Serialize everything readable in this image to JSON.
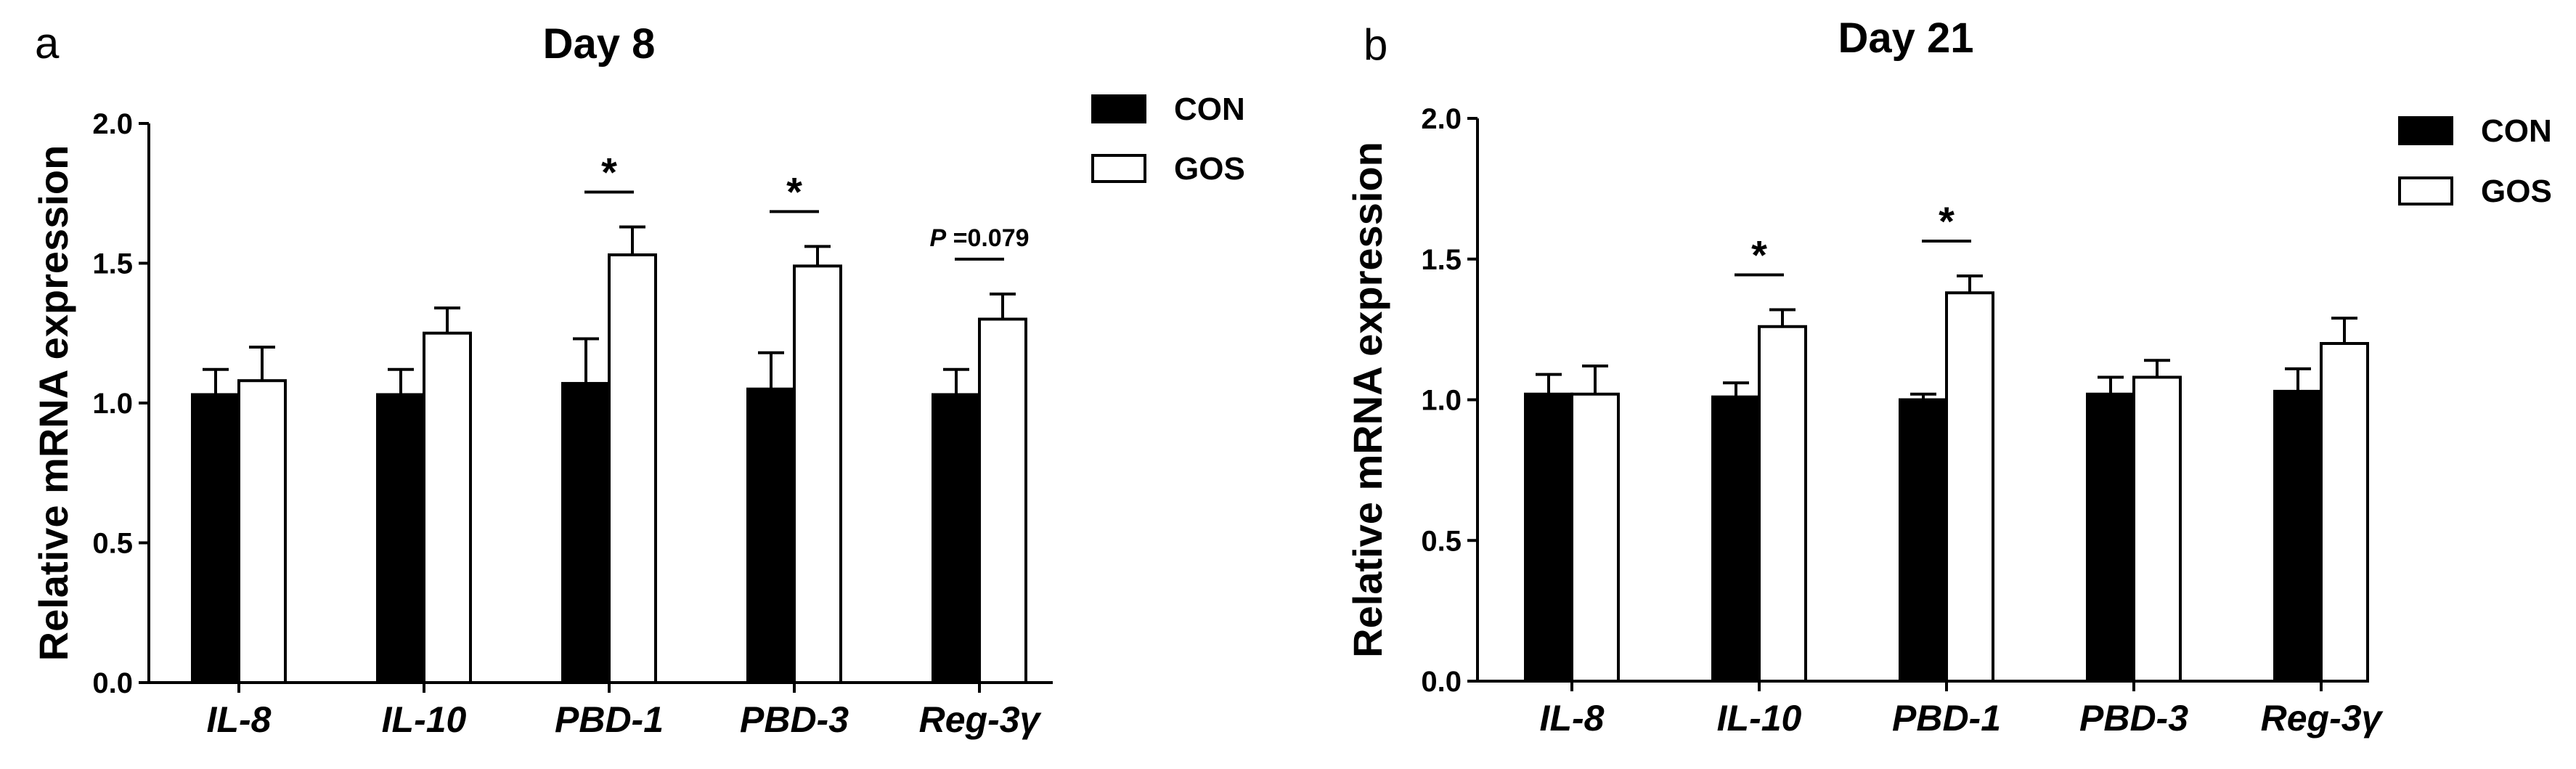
{
  "chart_data": [
    {
      "panel": "a",
      "type": "bar",
      "title": "Day 8",
      "xlabel": "",
      "ylabel": "Relative mRNA expression",
      "ylim": [
        0,
        2.0
      ],
      "yticks": [
        "0.0",
        "0.5",
        "1.0",
        "1.5",
        "2.0"
      ],
      "categories": [
        "IL-8",
        "IL-10",
        "PBD-1",
        "PBD-3",
        "Reg-3γ"
      ],
      "series": [
        {
          "name": "CON",
          "fill": "#000000",
          "values": [
            1.03,
            1.03,
            1.07,
            1.05,
            1.03
          ],
          "errors": [
            0.09,
            0.09,
            0.16,
            0.13,
            0.09
          ]
        },
        {
          "name": "GOS",
          "fill": "#ffffff",
          "values": [
            1.08,
            1.25,
            1.53,
            1.49,
            1.3
          ],
          "errors": [
            0.12,
            0.09,
            0.1,
            0.07,
            0.09
          ]
        }
      ],
      "annotations": [
        {
          "category": "PBD-1",
          "text": "*"
        },
        {
          "category": "PBD-3",
          "text": "*"
        },
        {
          "category": "Reg-3γ",
          "prefix": "P",
          "text": " =0.079"
        }
      ],
      "legend": "top-right"
    },
    {
      "panel": "b",
      "type": "bar",
      "title": "Day 21",
      "xlabel": "",
      "ylabel": "Relative mRNA expression",
      "ylim": [
        0,
        2.0
      ],
      "yticks": [
        "0.0",
        "0.5",
        "1.0",
        "1.5",
        "2.0"
      ],
      "categories": [
        "IL-8",
        "IL-10",
        "PBD-1",
        "PBD-3",
        "Reg-3γ"
      ],
      "series": [
        {
          "name": "CON",
          "fill": "#000000",
          "values": [
            1.02,
            1.01,
            1.0,
            1.02,
            1.03
          ],
          "errors": [
            0.07,
            0.05,
            0.02,
            0.06,
            0.08
          ]
        },
        {
          "name": "GOS",
          "fill": "#ffffff",
          "values": [
            1.02,
            1.26,
            1.38,
            1.08,
            1.2
          ],
          "errors": [
            0.1,
            0.06,
            0.06,
            0.06,
            0.09
          ]
        }
      ],
      "annotations": [
        {
          "category": "IL-10",
          "text": "*"
        },
        {
          "category": "PBD-1",
          "text": "*"
        }
      ],
      "legend": "top-right"
    }
  ]
}
